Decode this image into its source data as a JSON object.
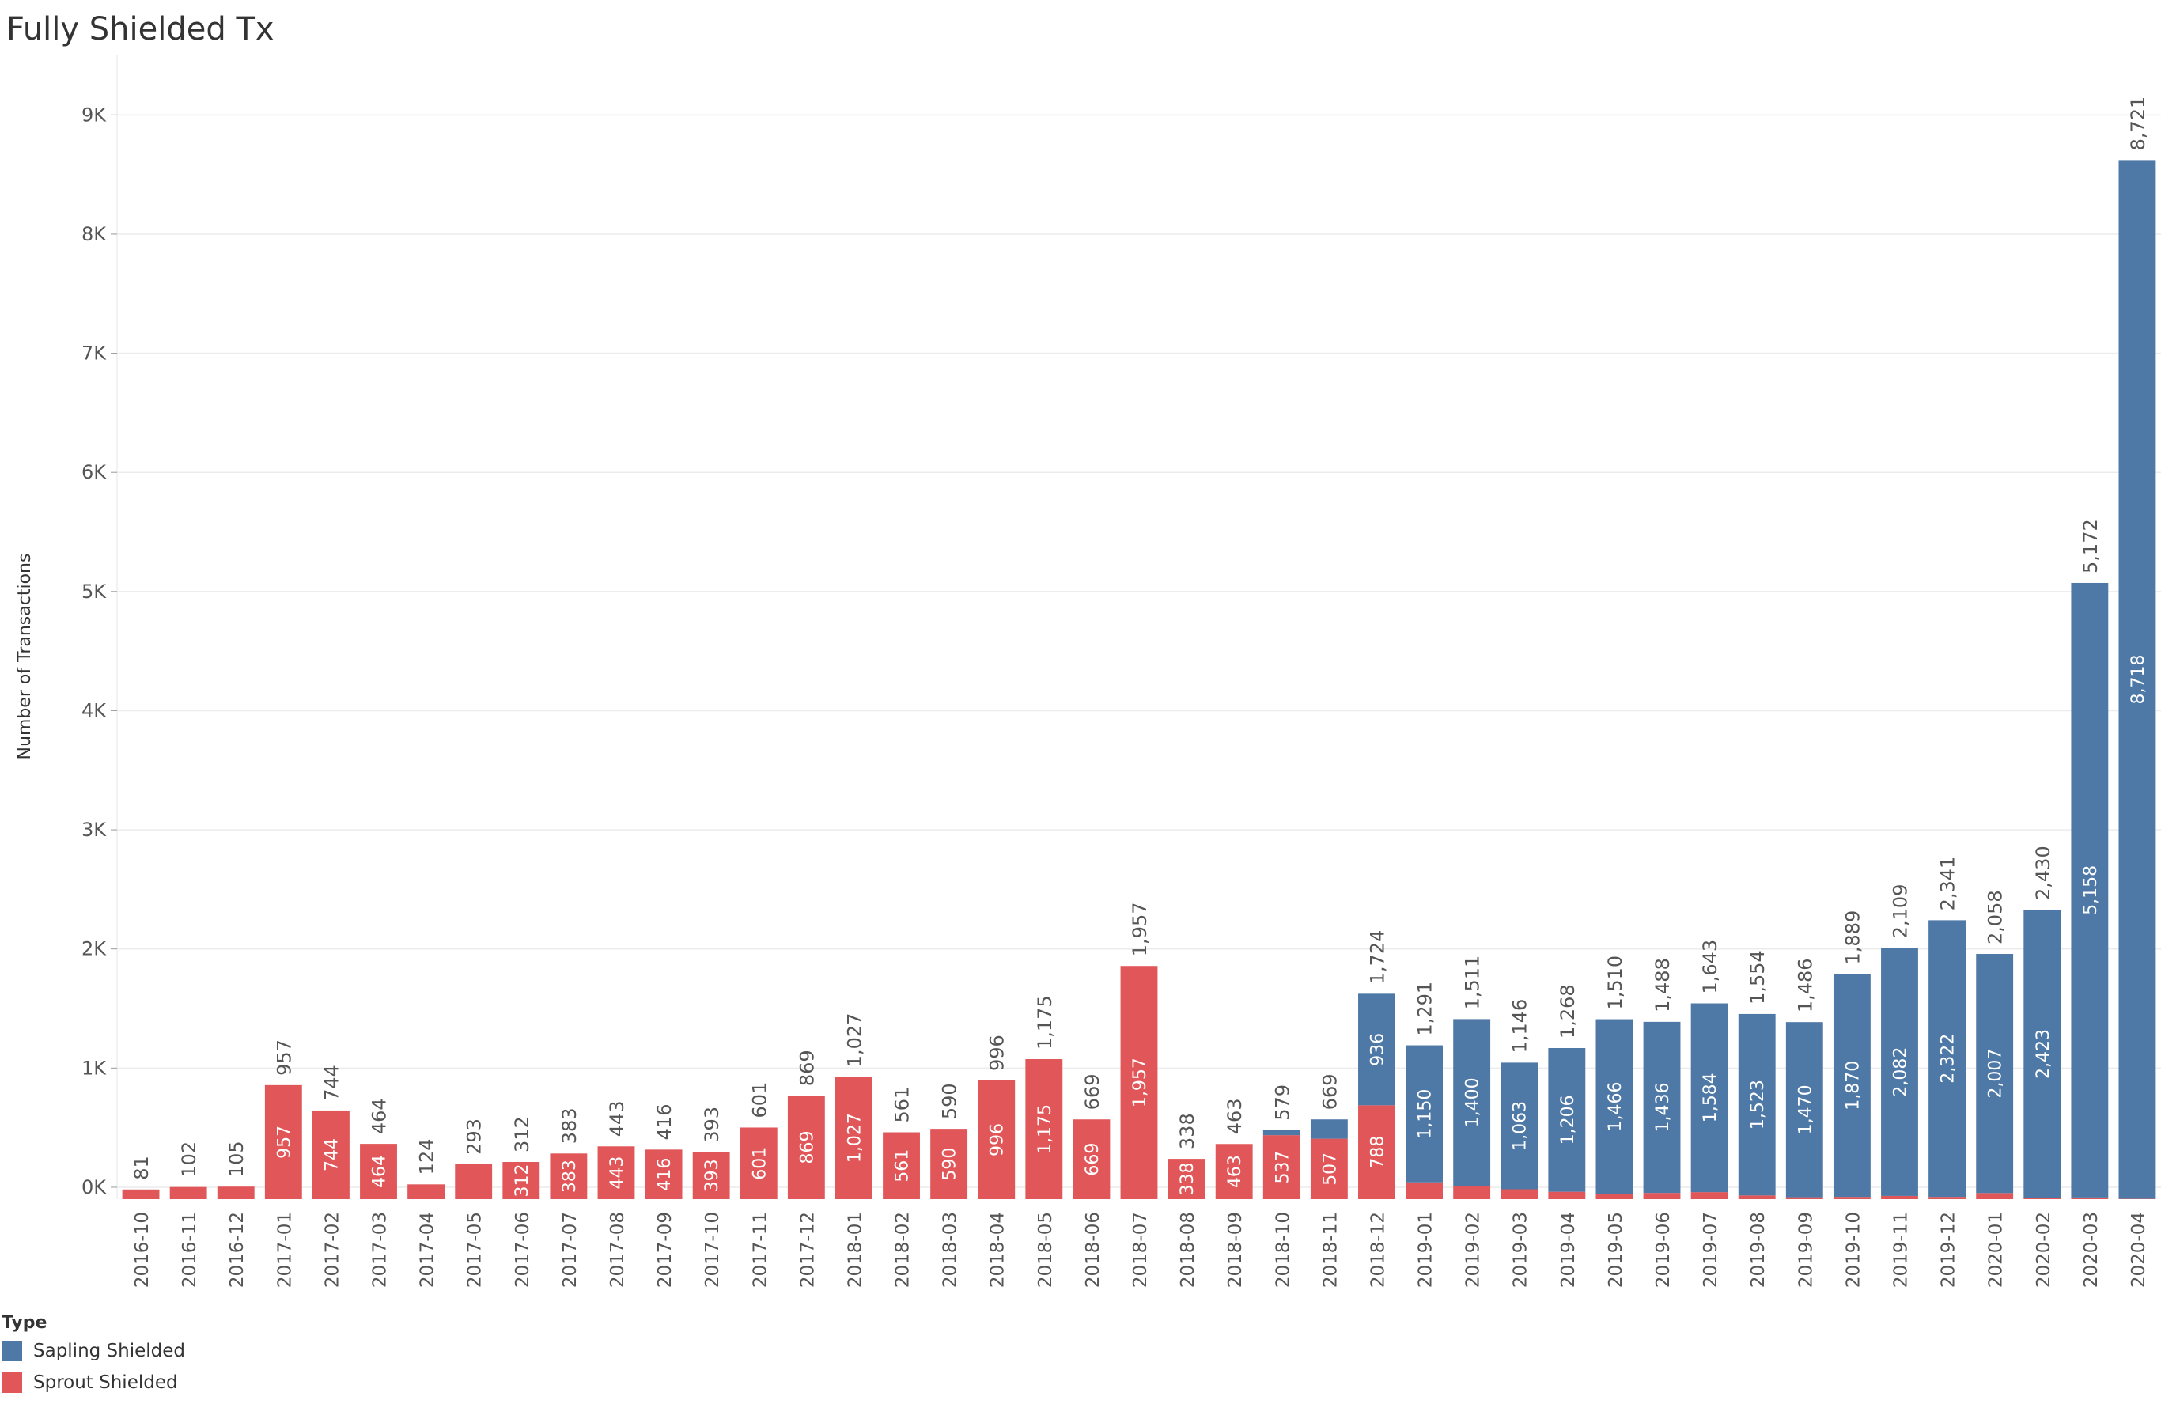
{
  "chart_data": {
    "type": "bar",
    "stacked": true,
    "title": "Fully Shielded Tx",
    "ylabel": "Number of Transactions",
    "xlabel": "",
    "ylim": [
      -100,
      9500
    ],
    "yticks": [
      0,
      1000,
      2000,
      3000,
      4000,
      5000,
      6000,
      7000,
      8000,
      9000
    ],
    "ytick_labels": [
      "0K",
      "1K",
      "2K",
      "3K",
      "4K",
      "5K",
      "6K",
      "7K",
      "8K",
      "9K"
    ],
    "grid": true,
    "legend_title": "Type",
    "legend_position": "bottom-left",
    "categories": [
      "2016-10",
      "2016-11",
      "2016-12",
      "2017-01",
      "2017-02",
      "2017-03",
      "2017-04",
      "2017-05",
      "2017-06",
      "2017-07",
      "2017-08",
      "2017-09",
      "2017-10",
      "2017-11",
      "2017-12",
      "2018-01",
      "2018-02",
      "2018-03",
      "2018-04",
      "2018-05",
      "2018-06",
      "2018-07",
      "2018-08",
      "2018-09",
      "2018-10",
      "2018-11",
      "2018-12",
      "2019-01",
      "2019-02",
      "2019-03",
      "2019-04",
      "2019-05",
      "2019-06",
      "2019-07",
      "2019-08",
      "2019-09",
      "2019-10",
      "2019-11",
      "2019-12",
      "2020-01",
      "2020-02",
      "2020-03",
      "2020-04"
    ],
    "totals": [
      81,
      102,
      105,
      957,
      744,
      464,
      124,
      293,
      312,
      383,
      443,
      416,
      393,
      601,
      869,
      1027,
      561,
      590,
      996,
      1175,
      669,
      1957,
      338,
      463,
      579,
      669,
      1724,
      1291,
      1511,
      1146,
      1268,
      1510,
      1488,
      1643,
      1554,
      1486,
      1889,
      2109,
      2341,
      2058,
      2430,
      5172,
      8721
    ],
    "series": [
      {
        "name": "Sprout Shielded",
        "color": "#e15759",
        "values": [
          81,
          102,
          105,
          957,
          744,
          464,
          124,
          293,
          312,
          383,
          443,
          416,
          393,
          601,
          869,
          1027,
          561,
          590,
          996,
          1175,
          669,
          1957,
          338,
          463,
          537,
          507,
          788,
          141,
          111,
          83,
          62,
          44,
          52,
          59,
          31,
          16,
          19,
          27,
          19,
          51,
          7,
          14,
          3
        ],
        "label_values": [
          null,
          null,
          null,
          957,
          744,
          464,
          null,
          null,
          312,
          383,
          443,
          416,
          393,
          601,
          869,
          1027,
          561,
          590,
          996,
          1175,
          669,
          1957,
          338,
          463,
          537,
          507,
          788,
          null,
          null,
          null,
          null,
          null,
          null,
          null,
          null,
          null,
          null,
          null,
          null,
          null,
          null,
          null,
          null
        ]
      },
      {
        "name": "Sapling Shielded",
        "color": "#4e79a7",
        "values": [
          0,
          0,
          0,
          0,
          0,
          0,
          0,
          0,
          0,
          0,
          0,
          0,
          0,
          0,
          0,
          0,
          0,
          0,
          0,
          0,
          0,
          0,
          0,
          0,
          42,
          162,
          936,
          1150,
          1400,
          1063,
          1206,
          1466,
          1436,
          1584,
          1523,
          1470,
          1870,
          2082,
          2322,
          2007,
          2423,
          5158,
          8718
        ],
        "label_values": [
          null,
          null,
          null,
          null,
          null,
          null,
          null,
          null,
          null,
          null,
          null,
          null,
          null,
          null,
          null,
          null,
          null,
          null,
          null,
          null,
          null,
          null,
          null,
          null,
          null,
          null,
          936,
          1150,
          1400,
          1063,
          1206,
          1466,
          1436,
          1584,
          1523,
          1470,
          1870,
          2082,
          2322,
          2007,
          2423,
          5158,
          8718
        ]
      }
    ]
  }
}
